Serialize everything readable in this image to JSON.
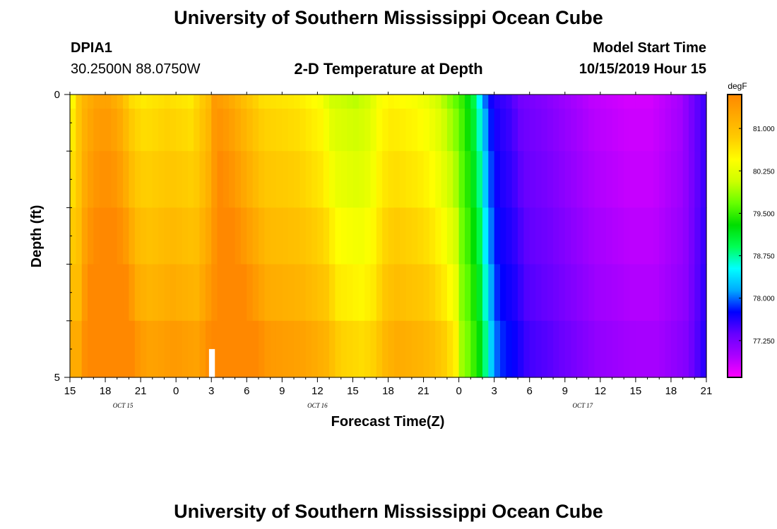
{
  "page": {
    "title": "University of Southern Mississippi Ocean Cube",
    "footer_title": "University of Southern Mississippi Ocean Cube",
    "station_id": "DPIA1",
    "station_coords": "30.2500N 88.0750W",
    "plot_title": "2-D Temperature at Depth",
    "model_start_label": "Model Start Time",
    "model_start_value": "10/15/2019 Hour 15"
  },
  "chart_data": {
    "type": "heatmap",
    "title": "2-D Temperature at Depth",
    "xlabel": "Forecast Time(Z)",
    "ylabel": "Depth (ft)",
    "x_tick_labels": [
      "15",
      "18",
      "21",
      "0",
      "3",
      "6",
      "9",
      "12",
      "15",
      "18",
      "21",
      "0",
      "3",
      "6",
      "9",
      "12",
      "15",
      "18",
      "21"
    ],
    "x_tick_hours": [
      0,
      3,
      6,
      9,
      12,
      15,
      18,
      21,
      24,
      27,
      30,
      33,
      36,
      39,
      42,
      45,
      48,
      51,
      54
    ],
    "xlim_hours": [
      0,
      54
    ],
    "date_labels": [
      {
        "text": "OCT 15",
        "hour": 4.5
      },
      {
        "text": "OCT 16",
        "hour": 21
      },
      {
        "text": "OCT 17",
        "hour": 43.5
      }
    ],
    "y_tick_labels": [
      "0",
      "5"
    ],
    "ylim": [
      0,
      5
    ],
    "y_minor_ticks": [
      1,
      2,
      3,
      4
    ],
    "colorbar": {
      "unit": "degF",
      "tick_labels": [
        "81.000",
        "80.250",
        "79.500",
        "78.750",
        "78.000",
        "77.250"
      ],
      "tick_values": [
        81.0,
        80.25,
        79.5,
        78.75,
        78.0,
        77.25
      ],
      "range": [
        76.6,
        81.6
      ],
      "colors": [
        "#ff00ff",
        "#aa00ff",
        "#6600ff",
        "#0000ff",
        "#00aaff",
        "#00ffff",
        "#00ff55",
        "#00dd00",
        "#66ff00",
        "#ccff00",
        "#ffff00",
        "#ffcc00",
        "#ffaa00",
        "#ff8800"
      ]
    },
    "depth_levels_ft": [
      0,
      0.5,
      1.5,
      2.5,
      3.5,
      4.5
    ],
    "temperature_profile": {
      "hours": [
        0,
        0.5,
        1,
        2,
        3,
        4,
        5,
        6,
        8,
        10,
        11.5,
        12,
        13,
        14,
        15,
        16,
        19,
        21,
        22,
        24,
        25,
        26,
        27,
        29,
        30,
        31,
        32,
        33,
        34,
        34.5,
        35,
        35.5,
        36,
        37,
        38,
        40,
        44,
        47,
        49,
        51.5,
        53,
        54
      ],
      "values": [
        80.5,
        80.9,
        81.1,
        81.3,
        81.3,
        81.1,
        80.7,
        80.6,
        80.7,
        80.6,
        81.0,
        81.4,
        81.3,
        81.1,
        80.9,
        80.7,
        80.6,
        80.4,
        80.1,
        80.0,
        80.1,
        80.4,
        80.5,
        80.4,
        80.3,
        80.1,
        79.8,
        79.5,
        79.0,
        78.5,
        78.0,
        77.7,
        77.6,
        77.5,
        77.3,
        77.2,
        76.9,
        76.8,
        76.8,
        77.0,
        77.4,
        77.6
      ]
    },
    "depth_warming": [
      0,
      0.1,
      0.2,
      0.35,
      0.5,
      0.7
    ],
    "missing_bar": {
      "hour_start": 11.8,
      "hour_end": 12.3,
      "depth_start": 4.5,
      "depth_end": 5
    }
  }
}
